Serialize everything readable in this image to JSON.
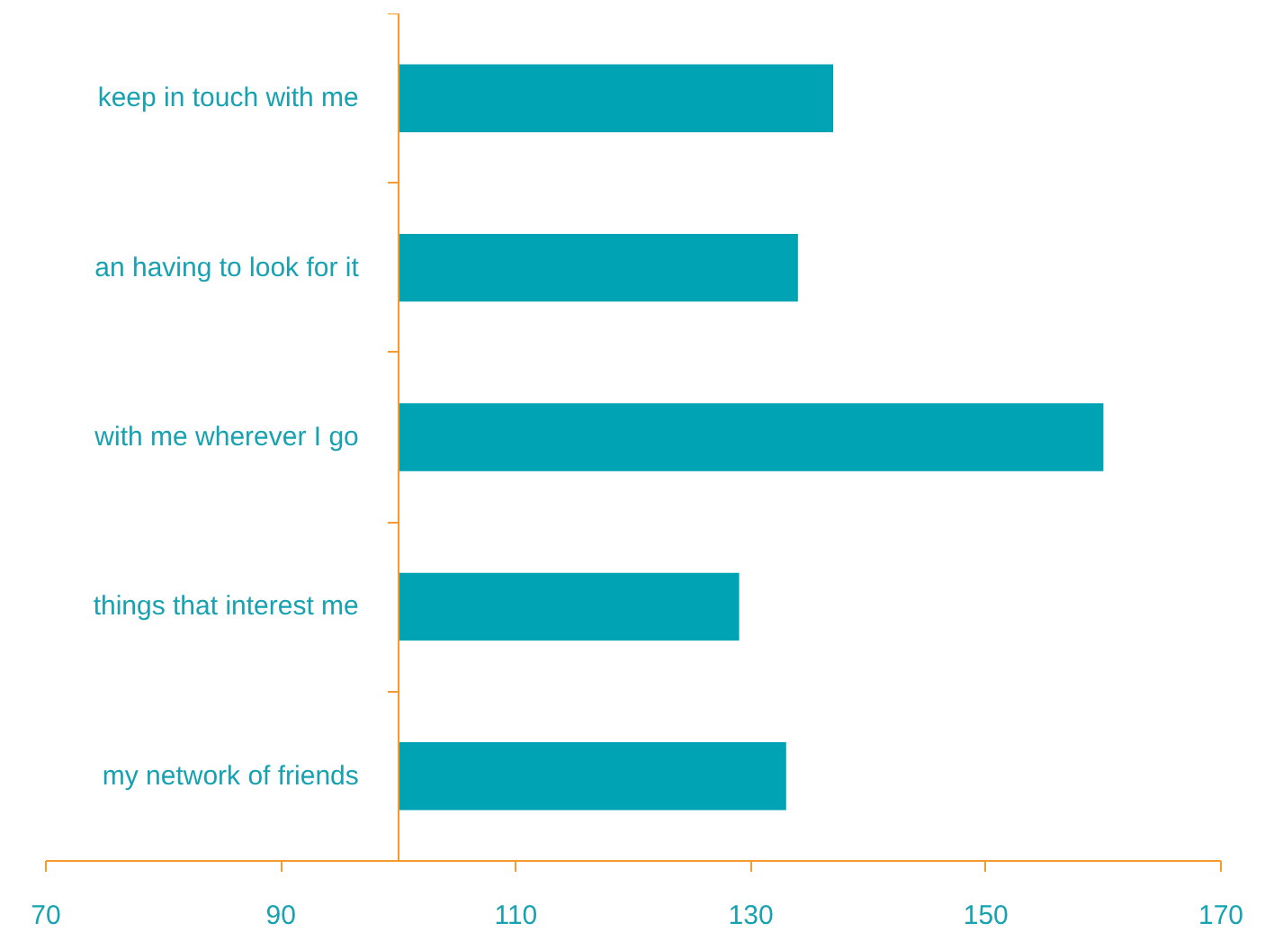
{
  "chart_data": {
    "type": "bar",
    "orientation": "horizontal",
    "categories": [
      "keep in touch with me",
      "an having to look for it",
      "with me wherever I go",
      "things that interest me",
      "my network of friends"
    ],
    "base": [
      100,
      100,
      100,
      100,
      100
    ],
    "values": [
      37,
      34,
      60,
      29,
      33
    ],
    "color": "#00a3b4",
    "xlim": [
      70,
      170
    ],
    "xticks": [
      70,
      90,
      110,
      130,
      150,
      170
    ]
  }
}
